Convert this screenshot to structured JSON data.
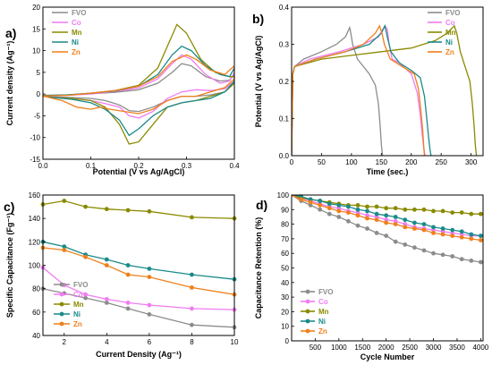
{
  "panels": [
    {
      "label": "a)",
      "type": "line",
      "xlabel": "Potential (V vs Ag/AgCl)",
      "ylabel": "Current density (Ag⁻¹)",
      "xlim": [
        0.0,
        0.4
      ],
      "ylim": [
        -15,
        20
      ],
      "xticks": [
        "0.0",
        "0.1",
        "0.2",
        "0.3",
        "0.4"
      ],
      "xtick_values": [
        0.0,
        0.1,
        0.2,
        0.3,
        0.4
      ],
      "yticks": [
        "-15",
        "-10",
        "-5",
        "0",
        "5",
        "10",
        "15",
        "20"
      ],
      "ytick_values": [
        -15,
        -10,
        -5,
        0,
        5,
        10,
        15,
        20
      ],
      "legend_position": "top-left"
    },
    {
      "label": "b)",
      "type": "line",
      "xlabel": "Time (sec.)",
      "ylabel": "Potential (V vs Ag/AgCl)",
      "xlim": [
        0,
        320
      ],
      "ylim": [
        0.0,
        0.4
      ],
      "xticks": [
        "0",
        "50",
        "100",
        "150",
        "200",
        "250",
        "300"
      ],
      "xtick_values": [
        0,
        50,
        100,
        150,
        200,
        250,
        300
      ],
      "yticks": [
        "0.0",
        "0.1",
        "0.2",
        "0.3",
        "0.4"
      ],
      "ytick_values": [
        0.0,
        0.1,
        0.2,
        0.3,
        0.4
      ],
      "legend_position": "top-right"
    },
    {
      "label": "c)",
      "type": "line",
      "xlabel": "Current Density (Ag⁻¹)",
      "ylabel": "Specific Capacitance (Fg⁻¹)",
      "xlim": [
        1,
        10
      ],
      "ylim": [
        40,
        160
      ],
      "xticks": [
        "2",
        "4",
        "6",
        "8",
        "10"
      ],
      "xtick_values": [
        2,
        4,
        6,
        8,
        10
      ],
      "yticks": [
        "40",
        "60",
        "80",
        "100",
        "120",
        "140",
        "160"
      ],
      "ytick_values": [
        40,
        60,
        80,
        100,
        120,
        140,
        160
      ],
      "legend_position": "bottom-left"
    },
    {
      "label": "d)",
      "type": "line",
      "xlabel": "Cycle Number",
      "ylabel": "Capacitance Retention (%)",
      "xlim": [
        0,
        4050
      ],
      "ylim": [
        0,
        100
      ],
      "xticks": [
        "500",
        "1000",
        "1500",
        "2000",
        "2500",
        "3000",
        "3500",
        "4000"
      ],
      "xtick_values": [
        500,
        1000,
        1500,
        2000,
        2500,
        3000,
        3500,
        4000
      ],
      "yticks": [
        "0",
        "10",
        "20",
        "30",
        "40",
        "50",
        "60",
        "70",
        "80",
        "90",
        "100"
      ],
      "ytick_values": [
        0,
        10,
        20,
        30,
        40,
        50,
        60,
        70,
        80,
        90,
        100
      ],
      "legend_position": "bottom-left"
    }
  ],
  "series_meta": [
    {
      "name": "FVO",
      "color": "#8c8c8c"
    },
    {
      "name": "Co",
      "color": "#f07cf0"
    },
    {
      "name": "Mn",
      "color": "#8a8a00"
    },
    {
      "name": "Ni",
      "color": "#1a8a8a"
    },
    {
      "name": "Zn",
      "color": "#f07f1a"
    }
  ],
  "chart_data": [
    {
      "type": "line",
      "title": "",
      "xlabel": "Potential (V vs Ag/AgCl)",
      "ylabel": "Current density (Ag⁻¹)",
      "xlim": [
        0.0,
        0.4
      ],
      "ylim": [
        -15,
        20
      ],
      "grid": false,
      "legend_position": "top-left",
      "series": [
        {
          "name": "FVO",
          "x": [
            0.0,
            0.05,
            0.1,
            0.15,
            0.2,
            0.24,
            0.27,
            0.29,
            0.31,
            0.34,
            0.37,
            0.39,
            0.4,
            0.4,
            0.38,
            0.35,
            0.32,
            0.29,
            0.26,
            0.23,
            0.2,
            0.18,
            0.16,
            0.13,
            0.1,
            0.06,
            0.02,
            0.0
          ],
          "y": [
            -0.3,
            -0.2,
            0.1,
            0.4,
            1.0,
            2.5,
            5.0,
            7.0,
            6.5,
            4.0,
            3.0,
            3.2,
            4.5,
            2.5,
            0.5,
            -0.2,
            -0.5,
            -0.5,
            -1.5,
            -3.0,
            -4.0,
            -3.8,
            -2.5,
            -1.5,
            -1.0,
            -0.8,
            -0.6,
            -0.3
          ]
        },
        {
          "name": "Co",
          "x": [
            0.0,
            0.05,
            0.1,
            0.15,
            0.2,
            0.24,
            0.27,
            0.29,
            0.31,
            0.34,
            0.37,
            0.39,
            0.4,
            0.4,
            0.38,
            0.35,
            0.32,
            0.29,
            0.26,
            0.23,
            0.2,
            0.18,
            0.16,
            0.13,
            0.1,
            0.06,
            0.02,
            0.0
          ],
          "y": [
            -0.5,
            -0.3,
            0.0,
            0.6,
            1.4,
            3.5,
            7.0,
            9.0,
            8.0,
            4.5,
            2.5,
            3.0,
            5.0,
            3.0,
            1.2,
            0.8,
            1.0,
            0.5,
            -1.0,
            -4.0,
            -5.5,
            -5.0,
            -3.0,
            -2.2,
            -1.5,
            -1.0,
            -0.8,
            -0.5
          ]
        },
        {
          "name": "Mn",
          "x": [
            0.0,
            0.05,
            0.1,
            0.15,
            0.2,
            0.24,
            0.26,
            0.28,
            0.3,
            0.33,
            0.36,
            0.39,
            0.4,
            0.4,
            0.38,
            0.35,
            0.32,
            0.29,
            0.26,
            0.23,
            0.2,
            0.18,
            0.16,
            0.13,
            0.1,
            0.06,
            0.02,
            0.0
          ],
          "y": [
            -0.5,
            -0.2,
            0.2,
            0.8,
            2.0,
            6.0,
            11.0,
            16.0,
            14.0,
            8.0,
            5.0,
            4.0,
            4.0,
            2.5,
            0.5,
            -0.5,
            -1.5,
            -2.0,
            -3.0,
            -7.0,
            -11.0,
            -11.5,
            -7.0,
            -3.0,
            -1.5,
            -1.0,
            -0.8,
            -0.5
          ]
        },
        {
          "name": "Ni",
          "x": [
            0.0,
            0.05,
            0.1,
            0.15,
            0.2,
            0.24,
            0.27,
            0.29,
            0.31,
            0.34,
            0.37,
            0.39,
            0.4,
            0.4,
            0.38,
            0.35,
            0.32,
            0.29,
            0.26,
            0.23,
            0.2,
            0.18,
            0.16,
            0.13,
            0.1,
            0.06,
            0.02,
            0.0
          ],
          "y": [
            -0.3,
            -0.2,
            0.2,
            0.7,
            1.8,
            4.5,
            9.0,
            11.0,
            10.0,
            6.5,
            4.5,
            4.0,
            6.0,
            3.0,
            0.5,
            -1.0,
            -1.5,
            -2.0,
            -3.0,
            -5.0,
            -8.0,
            -9.5,
            -6.0,
            -3.5,
            -2.0,
            -1.2,
            -0.8,
            -0.3
          ]
        },
        {
          "name": "Zn",
          "x": [
            0.0,
            0.05,
            0.1,
            0.15,
            0.2,
            0.24,
            0.27,
            0.3,
            0.32,
            0.35,
            0.38,
            0.39,
            0.4,
            0.4,
            0.38,
            0.35,
            0.32,
            0.29,
            0.26,
            0.23,
            0.2,
            0.17,
            0.14,
            0.12,
            0.1,
            0.07,
            0.04,
            0.02,
            0.0
          ],
          "y": [
            -0.4,
            -0.3,
            0.2,
            0.8,
            1.8,
            4.0,
            7.5,
            9.0,
            8.0,
            5.5,
            4.5,
            5.5,
            6.5,
            3.5,
            1.5,
            0.5,
            -0.5,
            -0.5,
            -1.5,
            -3.5,
            -4.5,
            -4.0,
            -3.5,
            -3.0,
            -3.5,
            -3.0,
            -1.5,
            -1.0,
            -0.4
          ]
        }
      ]
    },
    {
      "type": "line",
      "title": "",
      "xlabel": "Time (sec.)",
      "ylabel": "Potential (V vs Ag/AgCl)",
      "xlim": [
        0,
        320
      ],
      "ylim": [
        0.0,
        0.4
      ],
      "grid": false,
      "legend_position": "top-right",
      "series": [
        {
          "name": "FVO",
          "x": [
            0,
            2,
            5,
            20,
            50,
            75,
            90,
            97,
            99,
            102,
            110,
            120,
            130,
            140,
            145,
            148,
            150,
            152
          ],
          "y": [
            0.0,
            0.22,
            0.24,
            0.26,
            0.28,
            0.3,
            0.32,
            0.345,
            0.33,
            0.3,
            0.26,
            0.24,
            0.22,
            0.19,
            0.14,
            0.08,
            0.03,
            0.0
          ]
        },
        {
          "name": "Co",
          "x": [
            0,
            2,
            5,
            30,
            80,
            120,
            145,
            156,
            160,
            163,
            168,
            180,
            200,
            210,
            215,
            218,
            221,
            223
          ],
          "y": [
            0.0,
            0.22,
            0.24,
            0.26,
            0.28,
            0.3,
            0.32,
            0.35,
            0.34,
            0.3,
            0.26,
            0.25,
            0.22,
            0.17,
            0.11,
            0.06,
            0.02,
            0.0
          ]
        },
        {
          "name": "Mn",
          "x": [
            0,
            2,
            5,
            50,
            100,
            150,
            200,
            240,
            260,
            272,
            276,
            282,
            290,
            298,
            302,
            305,
            307,
            309
          ],
          "y": [
            0.0,
            0.22,
            0.24,
            0.26,
            0.27,
            0.28,
            0.29,
            0.31,
            0.33,
            0.35,
            0.33,
            0.28,
            0.24,
            0.2,
            0.14,
            0.08,
            0.03,
            0.0
          ]
        },
        {
          "name": "Ni",
          "x": [
            0,
            2,
            5,
            40,
            90,
            130,
            150,
            156,
            160,
            166,
            180,
            200,
            215,
            222,
            226,
            229,
            231,
            233
          ],
          "y": [
            0.0,
            0.22,
            0.24,
            0.26,
            0.28,
            0.3,
            0.33,
            0.35,
            0.32,
            0.28,
            0.25,
            0.23,
            0.21,
            0.16,
            0.1,
            0.05,
            0.02,
            0.0
          ]
        },
        {
          "name": "Zn",
          "x": [
            0,
            2,
            5,
            40,
            90,
            120,
            140,
            147,
            151,
            155,
            165,
            185,
            205,
            212,
            216,
            219,
            221,
            222
          ],
          "y": [
            0.0,
            0.22,
            0.24,
            0.26,
            0.28,
            0.3,
            0.33,
            0.35,
            0.33,
            0.3,
            0.26,
            0.24,
            0.22,
            0.18,
            0.12,
            0.07,
            0.02,
            0.0
          ]
        }
      ]
    },
    {
      "type": "line",
      "title": "",
      "xlabel": "Current Density (Ag⁻¹)",
      "ylabel": "Specific Capacitance (Fg⁻¹)",
      "xlim": [
        1,
        10
      ],
      "ylim": [
        40,
        160
      ],
      "grid": false,
      "legend_position": "bottom-left",
      "series": [
        {
          "name": "FVO",
          "x": [
            1,
            2,
            3,
            4,
            5,
            6,
            8,
            10
          ],
          "y": [
            80,
            76,
            72,
            68,
            63,
            58,
            49,
            47
          ]
        },
        {
          "name": "Co",
          "x": [
            1,
            2,
            3,
            4,
            5,
            6,
            8,
            10
          ],
          "y": [
            98,
            83,
            75,
            71,
            68,
            66,
            63,
            62
          ]
        },
        {
          "name": "Mn",
          "x": [
            1,
            2,
            3,
            4,
            5,
            6,
            8,
            10
          ],
          "y": [
            152,
            155,
            150,
            148,
            147,
            146,
            141,
            140
          ]
        },
        {
          "name": "Ni",
          "x": [
            1,
            2,
            3,
            4,
            5,
            6,
            8,
            10
          ],
          "y": [
            120,
            116,
            109,
            105,
            100,
            97,
            92,
            88
          ]
        },
        {
          "name": "Zn",
          "x": [
            1,
            2,
            3,
            4,
            5,
            6,
            8,
            10
          ],
          "y": [
            115,
            113,
            107,
            100,
            92,
            90,
            81,
            75
          ]
        }
      ]
    },
    {
      "type": "line",
      "title": "",
      "xlabel": "Cycle Number",
      "ylabel": "Capacitance Retention (%)",
      "xlim": [
        0,
        4050
      ],
      "ylim": [
        0,
        100
      ],
      "grid": false,
      "legend_position": "bottom-left",
      "series": [
        {
          "name": "FVO",
          "x": [
            0,
            200,
            400,
            600,
            800,
            1000,
            1200,
            1400,
            1600,
            1800,
            2000,
            2200,
            2400,
            2600,
            2800,
            3000,
            3200,
            3400,
            3600,
            3800,
            4000
          ],
          "y": [
            100,
            96,
            93,
            90,
            87,
            85,
            82,
            79,
            77,
            74,
            72,
            68,
            66,
            64,
            62,
            60,
            59,
            58,
            56,
            55,
            54
          ]
        },
        {
          "name": "Co",
          "x": [
            0,
            200,
            400,
            600,
            800,
            1000,
            1200,
            1400,
            1600,
            1800,
            2000,
            2200,
            2400,
            2600,
            2800,
            3000,
            3200,
            3400,
            3600,
            3800,
            4000
          ],
          "y": [
            100,
            98,
            96,
            94,
            92,
            91,
            89,
            88,
            86,
            85,
            83,
            82,
            80,
            78,
            77,
            76,
            75,
            74,
            73,
            72,
            72
          ]
        },
        {
          "name": "Mn",
          "x": [
            0,
            200,
            400,
            600,
            800,
            1000,
            1200,
            1400,
            1600,
            1800,
            2000,
            2200,
            2400,
            2600,
            2800,
            3000,
            3200,
            3400,
            3600,
            3800,
            4000
          ],
          "y": [
            100,
            98,
            97,
            96,
            95,
            94,
            93,
            93,
            92,
            92,
            91,
            91,
            90,
            90,
            90,
            89,
            89,
            88,
            88,
            87,
            87
          ]
        },
        {
          "name": "Ni",
          "x": [
            0,
            200,
            400,
            600,
            800,
            1000,
            1200,
            1400,
            1600,
            1800,
            2000,
            2200,
            2400,
            2600,
            2800,
            3000,
            3200,
            3400,
            3600,
            3800,
            4000
          ],
          "y": [
            100,
            99,
            97,
            96,
            94,
            93,
            92,
            90,
            89,
            87,
            86,
            85,
            83,
            81,
            80,
            78,
            77,
            76,
            75,
            73,
            72
          ]
        },
        {
          "name": "Zn",
          "x": [
            0,
            200,
            400,
            600,
            800,
            1000,
            1200,
            1400,
            1600,
            1800,
            2000,
            2200,
            2400,
            2600,
            2800,
            3000,
            3200,
            3400,
            3600,
            3800,
            4000
          ],
          "y": [
            100,
            97,
            95,
            93,
            91,
            89,
            88,
            86,
            84,
            83,
            81,
            80,
            78,
            77,
            76,
            74,
            73,
            72,
            71,
            70,
            69
          ]
        }
      ]
    }
  ]
}
